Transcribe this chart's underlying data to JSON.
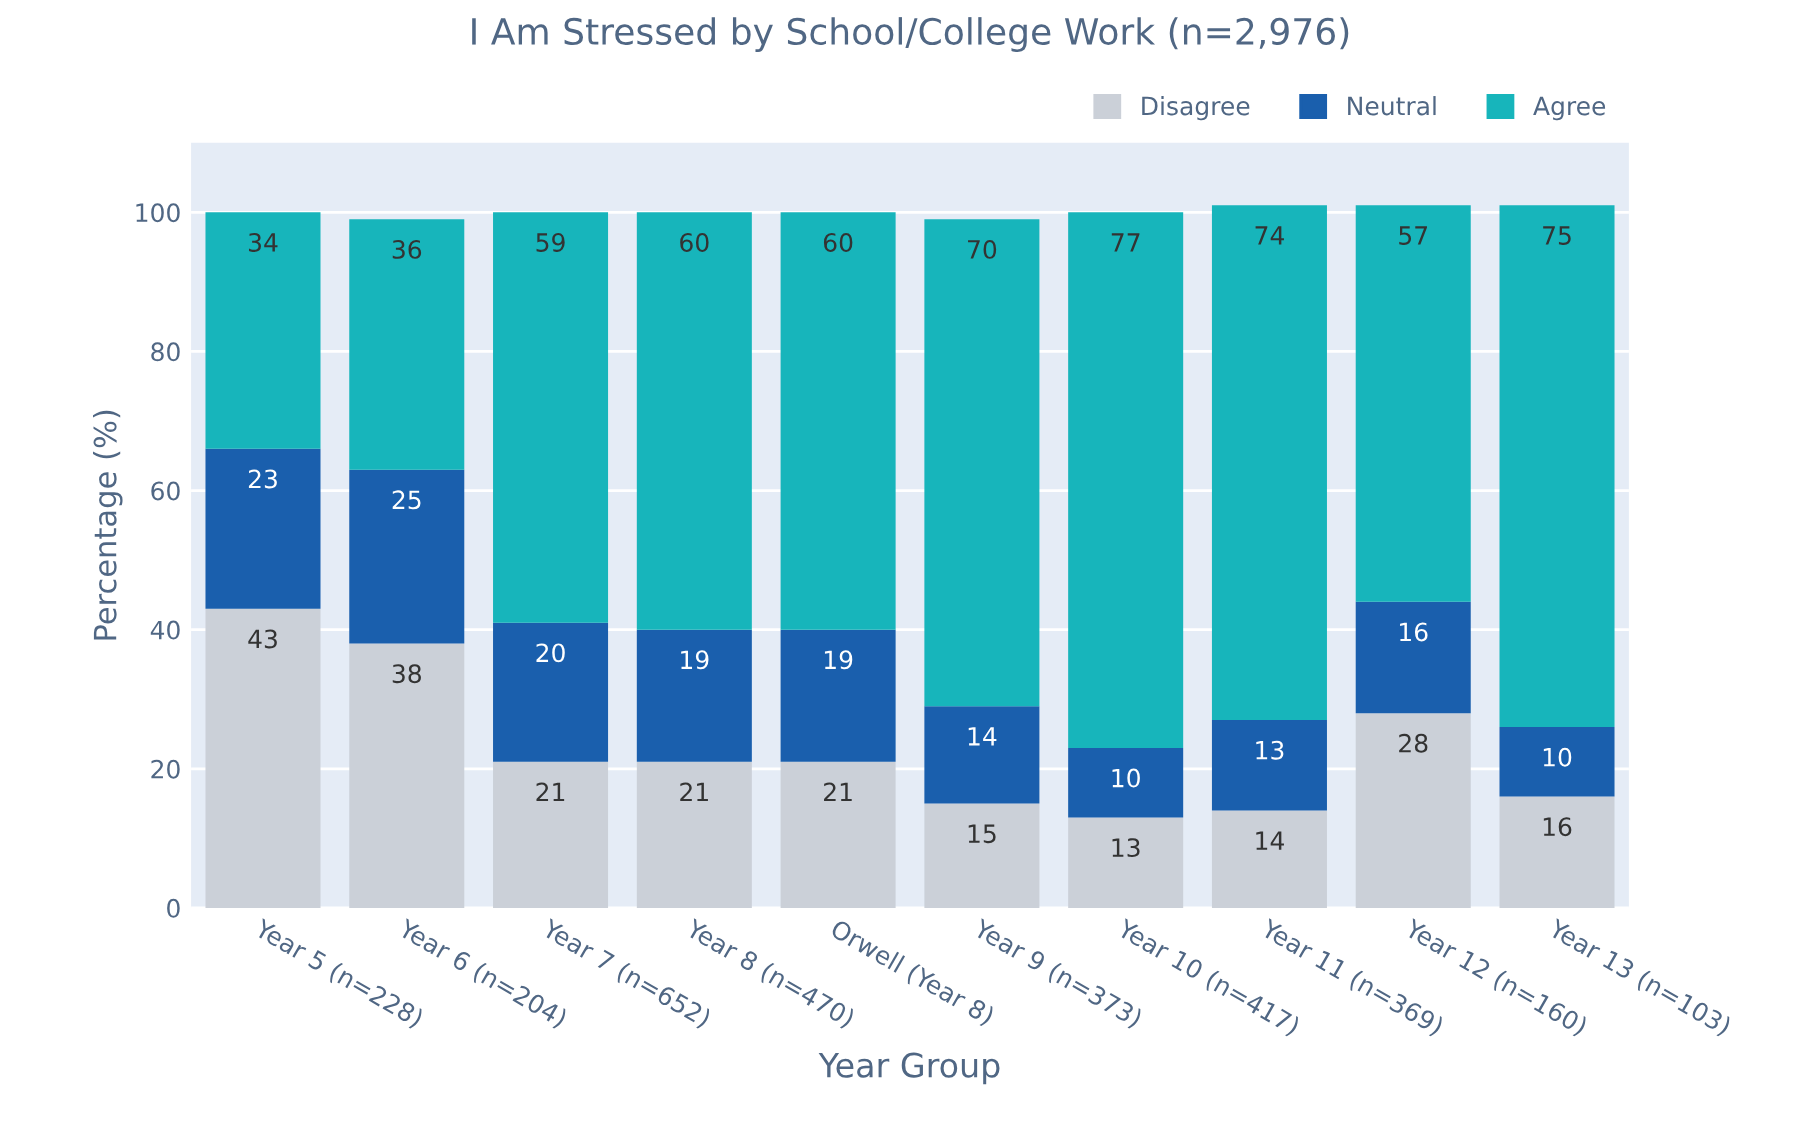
{
  "chart_data": {
    "type": "bar",
    "title": "I Am Stressed by School/College Work (n=2,976)",
    "xlabel": "Year Group",
    "ylabel": "Percentage (%)",
    "categories": [
      "Year 5 (n=228)",
      "Year 6 (n=204)",
      "Year 7 (n=652)",
      "Year 8 (n=470)",
      "Orwell (Year 8)",
      "Year 9 (n=373)",
      "Year 10 (n=417)",
      "Year 11 (n=369)",
      "Year 12 (n=160)",
      "Year 13 (n=103)"
    ],
    "stacked": true,
    "data_labels": true,
    "grid": "y",
    "legend": "top right",
    "ylim": [
      0,
      110
    ],
    "yticks": [
      0,
      20,
      40,
      60,
      80,
      100
    ],
    "series": [
      {
        "name": "Disagree",
        "color": "#cbd0d8",
        "values": [
          43,
          38,
          21,
          21,
          21,
          15,
          13,
          14,
          28,
          16
        ]
      },
      {
        "name": "Neutral",
        "color": "#1a5fad",
        "values": [
          23,
          25,
          20,
          19,
          19,
          14,
          10,
          13,
          16,
          10
        ]
      },
      {
        "name": "Agree",
        "color": "#17b5bb",
        "values": [
          34,
          36,
          59,
          60,
          60,
          70,
          77,
          74,
          57,
          75
        ]
      }
    ]
  }
}
